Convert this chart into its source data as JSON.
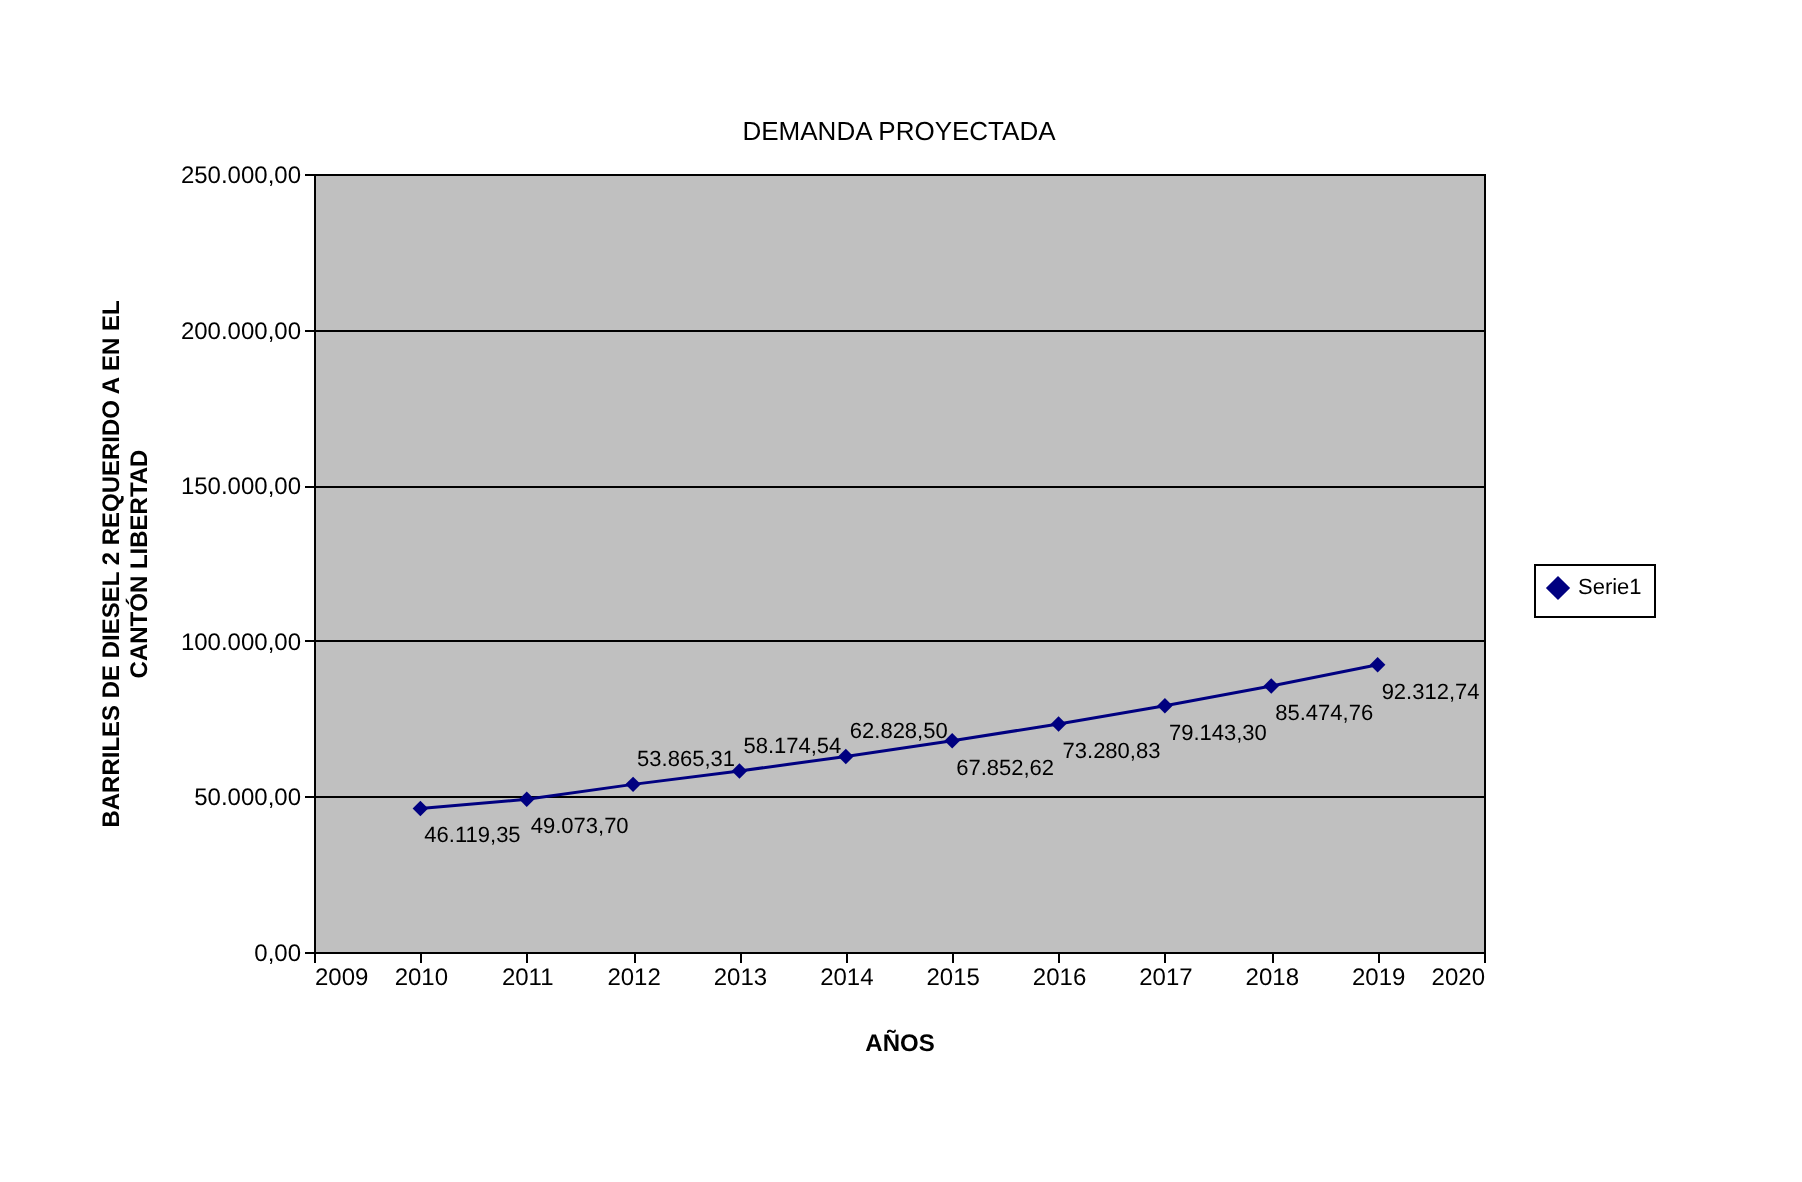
{
  "chart_data": {
    "type": "line",
    "title": "DEMANDA PROYECTADA",
    "xlabel": "AÑOS",
    "ylabel": "BARRILES DE DIESEL 2 REQUERIDO A EN EL CANTÓN LIBERTAD",
    "x": [
      2010,
      2011,
      2012,
      2013,
      2014,
      2015,
      2016,
      2017,
      2018,
      2019
    ],
    "series": [
      {
        "name": "Serie1",
        "color": "#000080",
        "values": [
          46119.35,
          49073.7,
          53865.31,
          58174.54,
          62828.5,
          67852.62,
          73280.83,
          79143.3,
          85474.76,
          92312.74
        ],
        "value_labels": [
          "46.119,35",
          "49.073,70",
          "53.865,31",
          "58.174,54",
          "62.828,50",
          "67.852,62",
          "73.280,83",
          "79.143,30",
          "85.474,76",
          "92.312,74"
        ]
      }
    ],
    "xlim": [
      2009,
      2020
    ],
    "xticks": [
      2009,
      2010,
      2011,
      2012,
      2013,
      2014,
      2015,
      2016,
      2017,
      2018,
      2019,
      2020
    ],
    "ylim": [
      0,
      250000
    ],
    "yticks": [
      {
        "value": 0,
        "label": "0,00"
      },
      {
        "value": 50000,
        "label": "50.000,00"
      },
      {
        "value": 100000,
        "label": "100.000,00"
      },
      {
        "value": 150000,
        "label": "150.000,00"
      },
      {
        "value": 200000,
        "label": "200.000,00"
      },
      {
        "value": 250000,
        "label": "250.000,00"
      }
    ],
    "grid": "y",
    "legend": "right",
    "marker": "diamond",
    "line_style": "solid"
  }
}
